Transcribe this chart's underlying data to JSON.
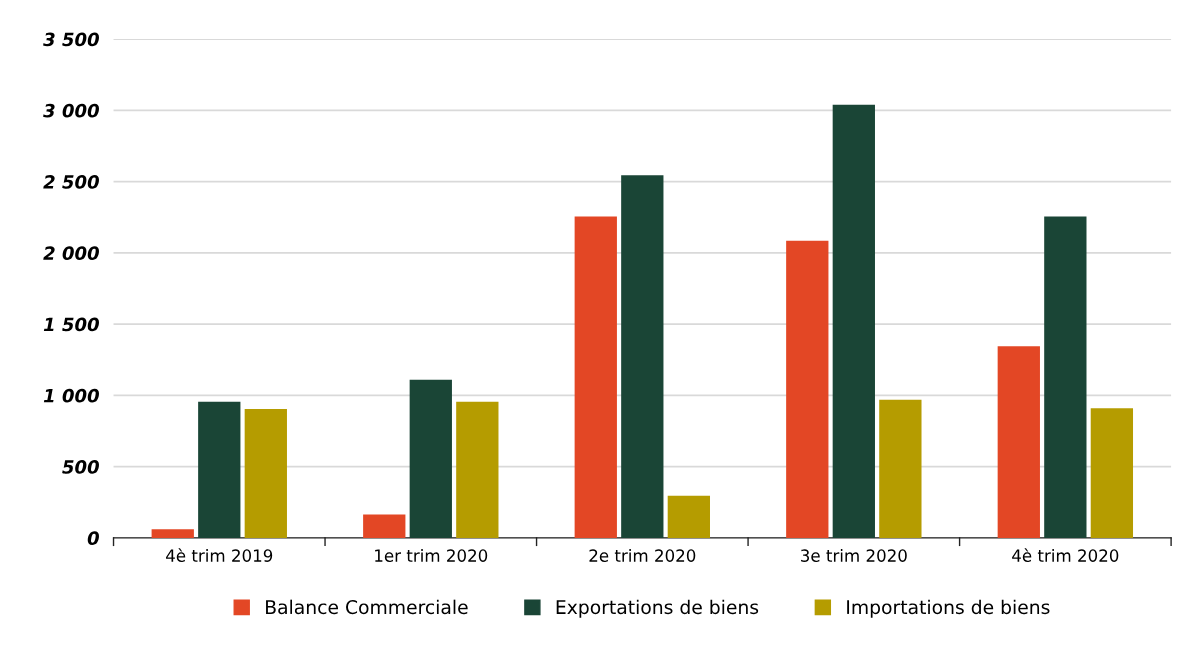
{
  "chart_data": {
    "type": "bar",
    "categories": [
      "4è trim 2019",
      "1er trim 2020",
      "2e trim 2020",
      "3e trim 2020",
      "4è trim 2020"
    ],
    "series": [
      {
        "name": "Balance Commerciale",
        "color": "#e34725",
        "values": [
          60,
          165,
          2255,
          2085,
          1345
        ]
      },
      {
        "name": "Exportations de biens",
        "color": "#1a4536",
        "values": [
          955,
          1110,
          2545,
          3040,
          2255
        ]
      },
      {
        "name": "Importations de biens",
        "color": "#b59c00",
        "values": [
          905,
          955,
          295,
          970,
          910
        ]
      }
    ],
    "ylim": [
      0,
      3500
    ],
    "yticks": [
      0,
      500,
      {
        "value": 1000,
        "label": "1 000"
      },
      {
        "value": 1500,
        "label": "1 500"
      },
      {
        "value": 2000,
        "label": "2 000"
      },
      {
        "value": 2500,
        "label": "2 500"
      },
      {
        "value": 3000,
        "label": "3 000"
      },
      {
        "value": 3500,
        "label": "3 500"
      }
    ],
    "grid": "y",
    "legend": "bottom"
  }
}
